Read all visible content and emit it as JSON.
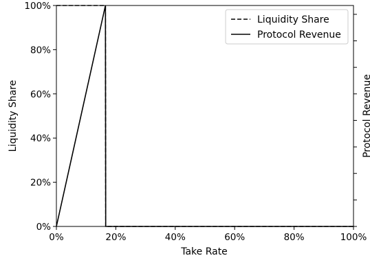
{
  "chart_data": {
    "type": "line",
    "title": "",
    "xlabel": "Take Rate",
    "ylabel": "Liquidity Share",
    "y2label": "Protocol Revenue",
    "xlim": [
      0,
      1
    ],
    "ylim": [
      0,
      1
    ],
    "x_ticks": [
      {
        "value": 0.0,
        "label": "0%"
      },
      {
        "value": 0.2,
        "label": "20%"
      },
      {
        "value": 0.4,
        "label": "40%"
      },
      {
        "value": 0.6,
        "label": "60%"
      },
      {
        "value": 0.8,
        "label": "80%"
      },
      {
        "value": 1.0,
        "label": "100%"
      }
    ],
    "y_ticks": [
      {
        "value": 0.0,
        "label": "0%"
      },
      {
        "value": 0.2,
        "label": "20%"
      },
      {
        "value": 0.4,
        "label": "40%"
      },
      {
        "value": 0.6,
        "label": "60%"
      },
      {
        "value": 0.8,
        "label": "80%"
      },
      {
        "value": 1.0,
        "label": "100%"
      }
    ],
    "y2_ticks": [
      0.0,
      0.12,
      0.24,
      0.36,
      0.48,
      0.6,
      0.72,
      0.84,
      0.96
    ],
    "grid": false,
    "legend_position": "top-right",
    "series": [
      {
        "name": "Liquidity Share",
        "style": "dashed",
        "color": "#000000",
        "x": [
          0.0,
          0.165,
          0.166,
          1.0
        ],
        "y": [
          1.0,
          1.0,
          0.0,
          0.0
        ]
      },
      {
        "name": "Protocol Revenue",
        "style": "solid",
        "color": "#000000",
        "x": [
          0.0,
          0.165,
          0.166,
          1.0
        ],
        "y": [
          0.0,
          1.0,
          0.0,
          0.0
        ]
      }
    ]
  }
}
